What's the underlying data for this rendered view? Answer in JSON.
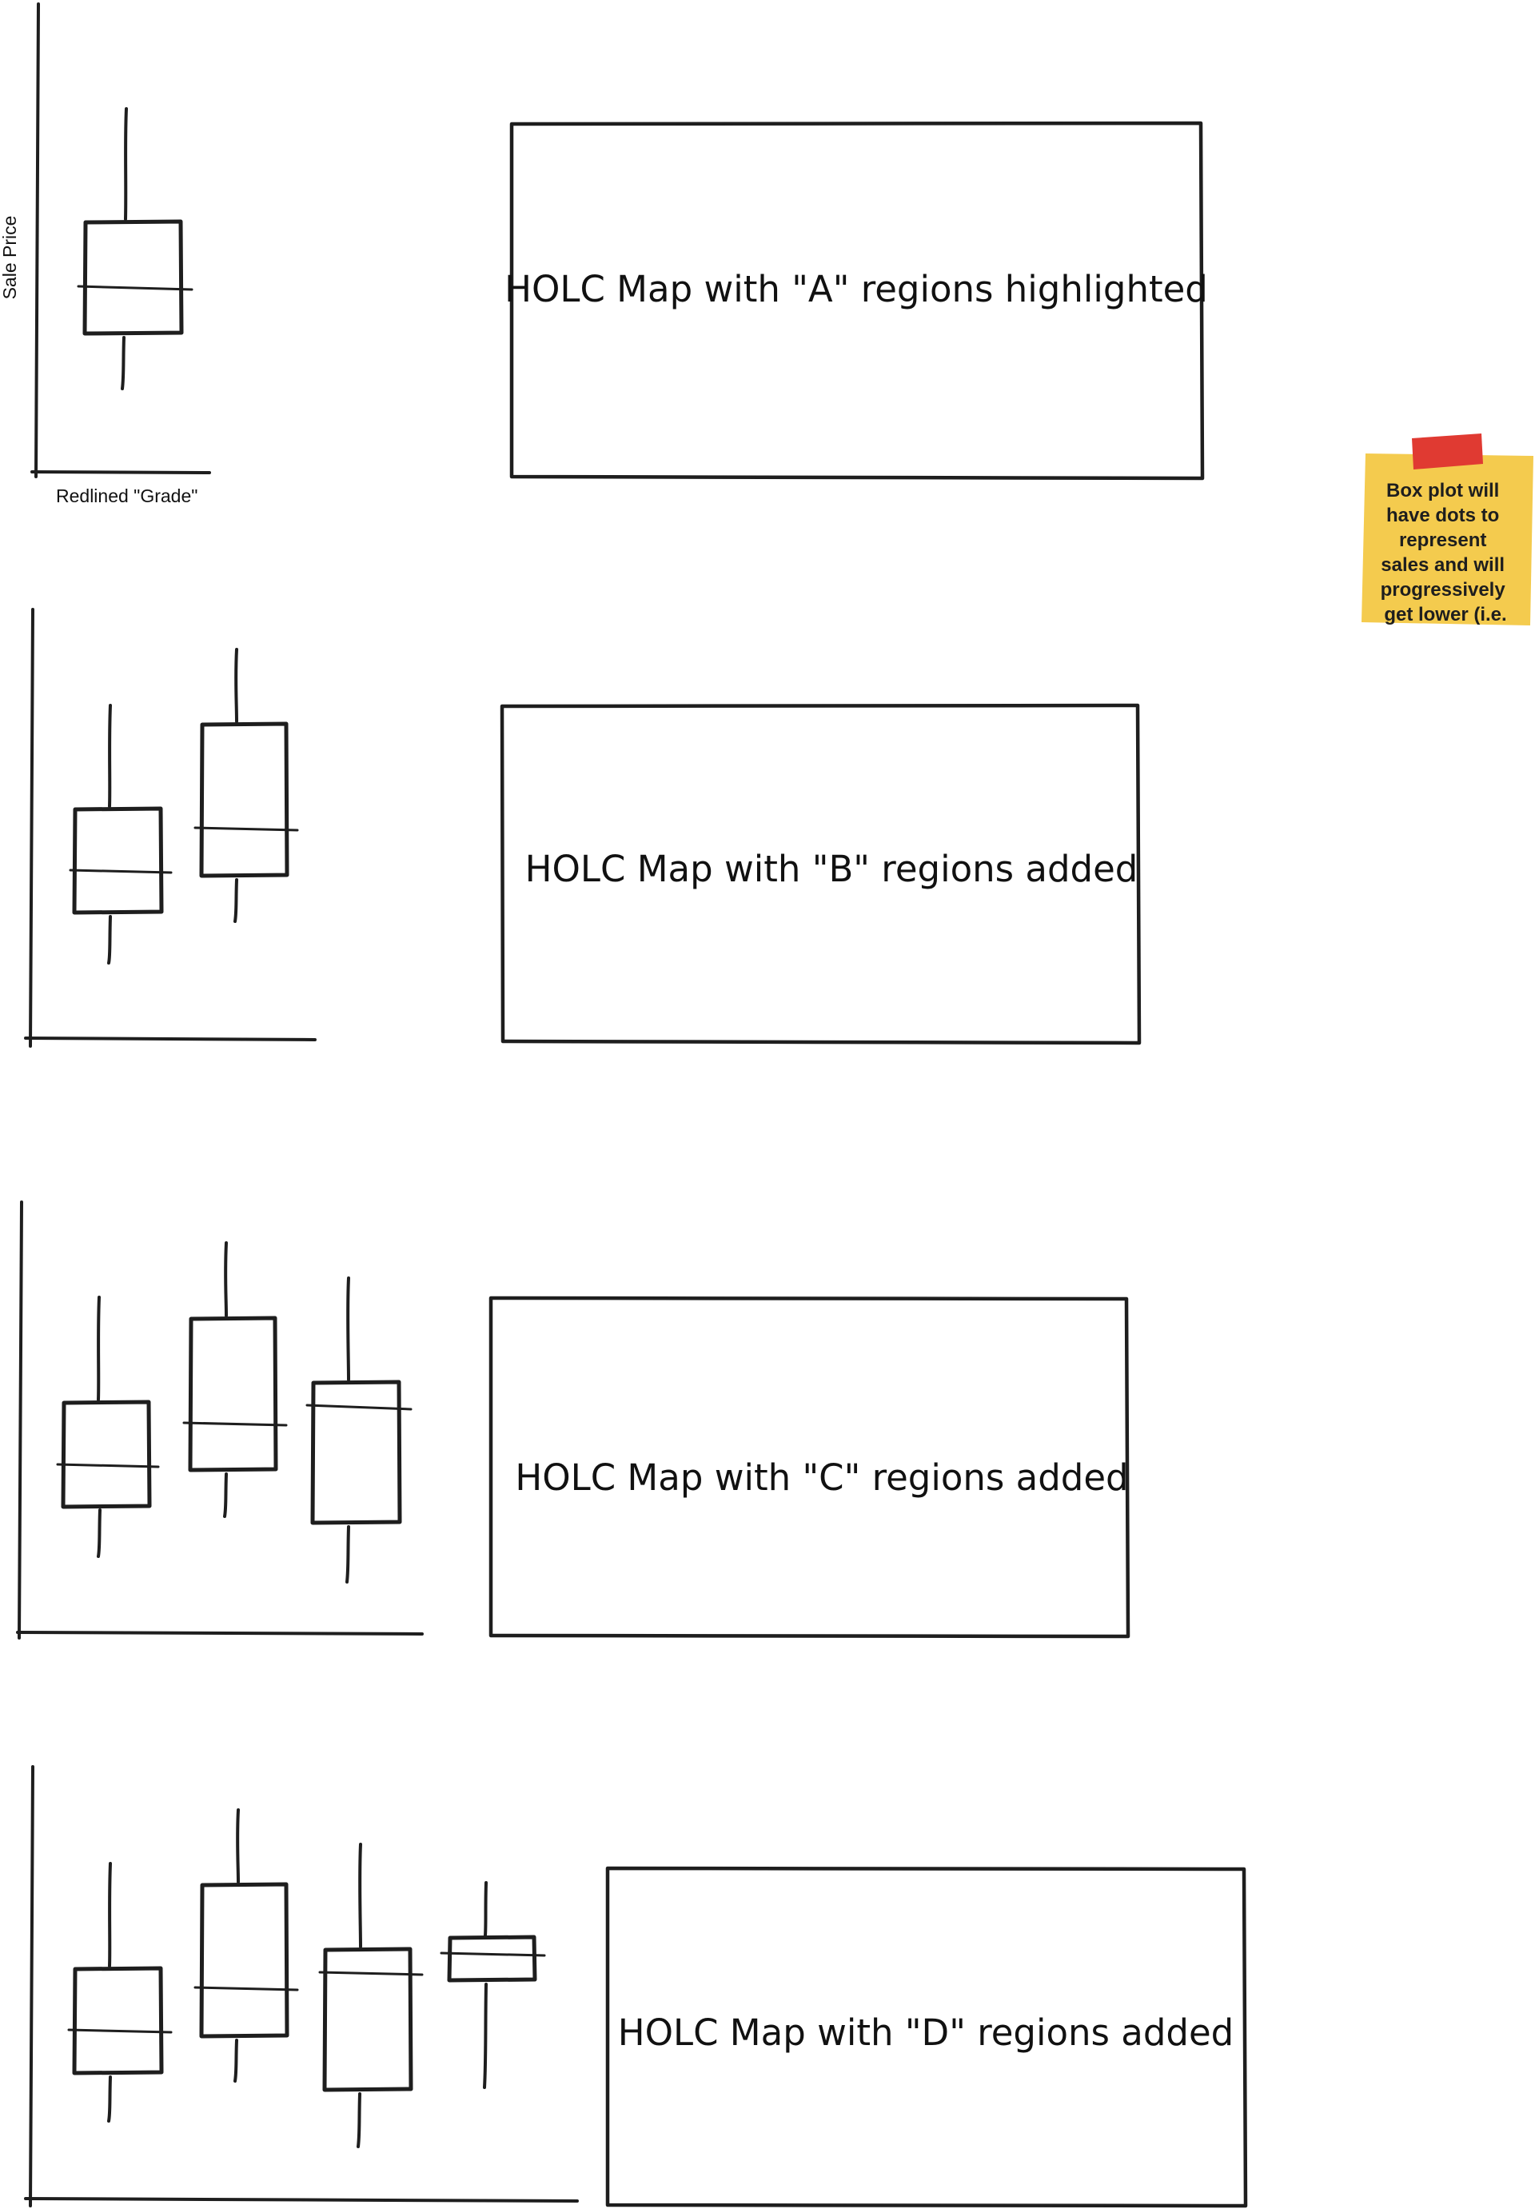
{
  "axes": {
    "y_label": "Sale Price",
    "x_label": "Redlined \"Grade\""
  },
  "panels": [
    {
      "caption": "HOLC Map with \"A\" regions highlighted"
    },
    {
      "caption": "HOLC Map with \"B\" regions added"
    },
    {
      "caption": "HOLC Map with \"C\" regions added"
    },
    {
      "caption": "HOLC Map with \"D\" regions added"
    }
  ],
  "sticky_note": {
    "lines": [
      "Box plot will",
      "have dots to",
      "represent",
      "sales and will",
      "progressively",
      "get lower (i.e."
    ],
    "note_color": "#f4cb4e",
    "tape_color": "#e03a32"
  }
}
